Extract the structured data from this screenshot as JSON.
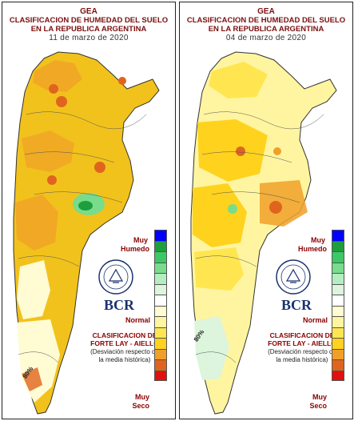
{
  "panels": [
    {
      "title_line1": "GEA",
      "title_line2": "CLASIFICACION DE HUMEDAD DEL SUELO",
      "title_line3": "EN LA REPUBLICA ARGENTINA",
      "date": "11  de marzo  de  2020",
      "logo": "BCR",
      "legend_top": "Muy Humedo",
      "legend_mid": "Normal",
      "legend_bottom": "Muy Seco",
      "classification": "CLASIFICACION DE FORTE LAY - AIELLO",
      "deviation": "(Desviación respecto de la media histórica)",
      "annotation": "80%"
    },
    {
      "title_line1": "GEA",
      "title_line2": "CLASIFICACION DE HUMEDAD DEL SUELO",
      "title_line3": "EN LA REPUBLICA ARGENTINA",
      "date": "04  de marzo  de  2020",
      "logo": "BCR",
      "legend_top": "Muy Humedo",
      "legend_mid": "Normal",
      "legend_bottom": "Muy Seco",
      "classification": "CLASIFICACION DE FORTE LAY - AIELLO",
      "deviation": "(Desviación respecto de la media histórica)",
      "annotation": "80%"
    }
  ],
  "legend_colors": [
    "#0000ff",
    "#1e9e3c",
    "#3cc864",
    "#78dc8c",
    "#b4eec0",
    "#dcf5dc",
    "#ffffff",
    "#fffbd2",
    "#fff5a0",
    "#ffe650",
    "#ffd21e",
    "#f0a028",
    "#e0641e",
    "#e01010"
  ],
  "colors": {
    "title": "#7a1010",
    "label": "#8b0000",
    "logo": "#1a3270"
  }
}
